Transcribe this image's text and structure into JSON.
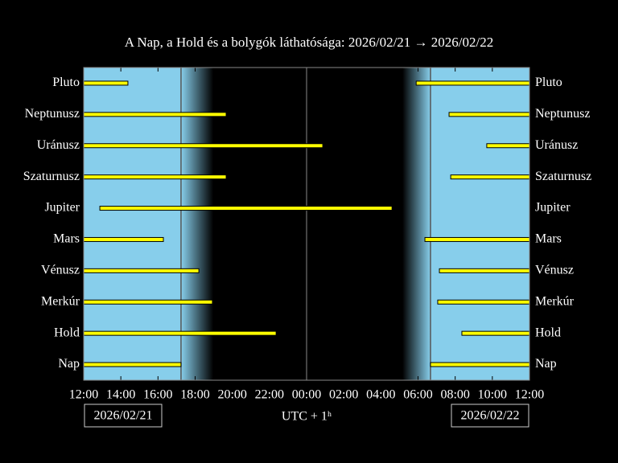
{
  "chart_data": {
    "type": "timeline",
    "title": "A Nap, a Hold és a bolygók láthatósága: 2026/02/21 → 2026/02/22",
    "x_label": "UTC + 1ʰ",
    "dates": [
      "2026/02/21",
      "2026/02/22"
    ],
    "categories": [
      "Pluto",
      "Neptunusz",
      "Uránusz",
      "Szaturnusz",
      "Jupiter",
      "Mars",
      "Vénusz",
      "Merkúr",
      "Hold",
      "Nap"
    ],
    "intervals": [
      [
        [
          0,
          2.38
        ],
        [
          17.9,
          24
        ]
      ],
      [
        [
          0,
          7.67
        ],
        [
          19.67,
          24
        ]
      ],
      [
        [
          0,
          12.87
        ],
        [
          21.7,
          24
        ]
      ],
      [
        [
          0,
          7.67
        ],
        [
          19.76,
          24
        ]
      ],
      [
        [
          0.87,
          16.6
        ]
      ],
      [
        [
          0,
          4.29
        ],
        [
          18.37,
          24
        ]
      ],
      [
        [
          0,
          6.2
        ],
        [
          19.15,
          24
        ]
      ],
      [
        [
          0,
          6.93
        ],
        [
          19.06,
          24
        ]
      ],
      [
        [
          0,
          10.36
        ],
        [
          20.36,
          24
        ]
      ],
      [
        [
          0,
          5.24
        ],
        [
          18.67,
          24
        ]
      ]
    ],
    "color": "#ffff00",
    "night": {
      "sunset": 5.24,
      "dark": 6.98,
      "dawn": 17.16,
      "sunrise": 18.67
    },
    "xlim": [
      0,
      24
    ],
    "xticks": [
      {
        "value": 0,
        "label": "12:00"
      },
      {
        "value": 2,
        "label": "14:00"
      },
      {
        "value": 4,
        "label": "16:00"
      },
      {
        "value": 6,
        "label": "18:00"
      },
      {
        "value": 8,
        "label": "20:00"
      },
      {
        "value": 10,
        "label": "22:00"
      },
      {
        "value": 12,
        "label": "00:00"
      },
      {
        "value": 14,
        "label": "02:00"
      },
      {
        "value": 16,
        "label": "04:00"
      },
      {
        "value": 18,
        "label": "06:00"
      },
      {
        "value": 20,
        "label": "08:00"
      },
      {
        "value": 22,
        "label": "10:00"
      },
      {
        "value": 24,
        "label": "12:00"
      }
    ]
  }
}
